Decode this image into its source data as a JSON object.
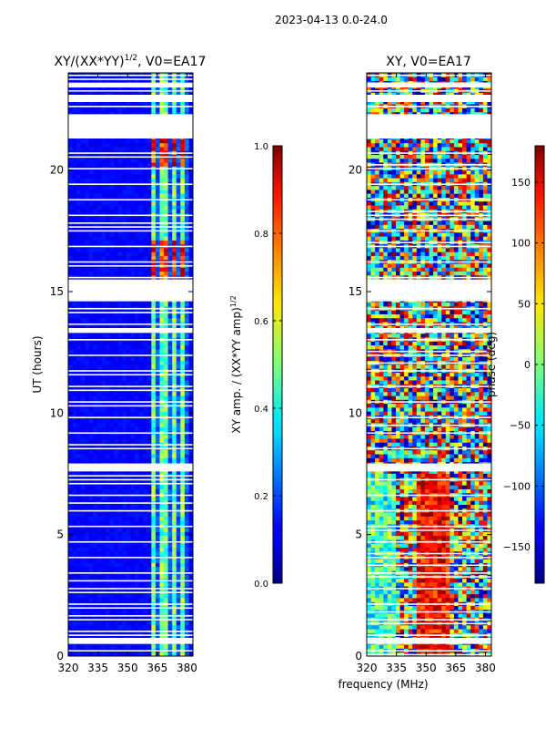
{
  "figure_title": "2023-04-13 0.0-24.0",
  "xlabel_shared": "frequency (MHz)",
  "chart_data": [
    {
      "type": "heatmap",
      "title_main": "XY/(XX*YY)",
      "title_exp": "1/2",
      "title_suffix": ", V0=EA17",
      "ylabel": "UT (hours)",
      "xlim": [
        320,
        383
      ],
      "ylim": [
        0,
        24
      ],
      "xticks": [
        320,
        335,
        350,
        365,
        380
      ],
      "xtick_labels": [
        "320",
        "335",
        "350",
        "365",
        "380"
      ],
      "yticks": [
        0,
        5,
        10,
        15,
        20
      ],
      "ytick_labels": [
        "0",
        "5",
        "10",
        "15",
        "20"
      ],
      "colorbar": {
        "label_main": "XY amp. / (XX*YY amp)",
        "label_exp": "1/2",
        "range": [
          0.0,
          1.0
        ],
        "ticks": [
          0.0,
          0.2,
          0.4,
          0.6,
          0.8,
          1.0
        ],
        "tick_labels": [
          "0.0",
          "0.2",
          "0.4",
          "0.6",
          "0.8",
          "1.0"
        ]
      }
    },
    {
      "type": "heatmap",
      "title_main": "XY, V0=EA17",
      "ylabel": "",
      "xlim": [
        320,
        383
      ],
      "ylim": [
        0,
        24
      ],
      "xticks": [
        320,
        335,
        350,
        365,
        380
      ],
      "xtick_labels": [
        "320",
        "335",
        "350",
        "365",
        "380"
      ],
      "yticks": [
        0,
        5,
        10,
        15,
        20
      ],
      "ytick_labels": [
        "0",
        "5",
        "10",
        "15",
        "20"
      ],
      "colorbar": {
        "label_main": "phase (deg)",
        "range": [
          -180,
          180
        ],
        "ticks": [
          -150,
          -100,
          -50,
          0,
          50,
          100,
          150
        ],
        "tick_labels": [
          "−150",
          "−100",
          "−50",
          "0",
          "50",
          "100",
          "150"
        ]
      }
    }
  ],
  "flagged_bands_hours": [
    [
      0.5,
      0.75
    ],
    [
      7.6,
      7.9
    ],
    [
      13.3,
      13.5
    ],
    [
      14.6,
      15.5
    ],
    [
      21.3,
      22.3
    ],
    [
      22.8,
      23.1
    ],
    [
      23.4,
      23.6
    ]
  ]
}
